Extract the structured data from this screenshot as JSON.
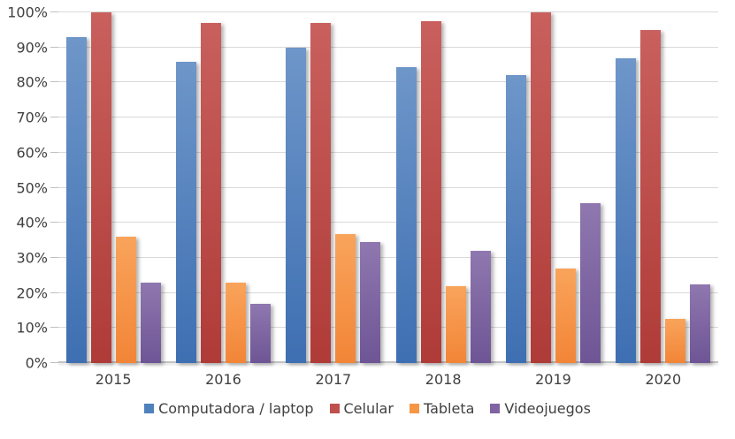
{
  "chart_data": {
    "type": "bar",
    "title": "",
    "xlabel": "",
    "ylabel": "",
    "categories": [
      "2015",
      "2016",
      "2017",
      "2018",
      "2019",
      "2020"
    ],
    "series": [
      {
        "name": "Computadora / laptop",
        "slug": "computadora-laptop",
        "color": "#4F81BD",
        "color_top": "#6E96C9",
        "color_bottom": "#3E6FB2",
        "values": [
          93,
          86,
          90,
          84.5,
          82,
          87
        ]
      },
      {
        "name": "Celular",
        "slug": "celular",
        "color": "#C0504D",
        "color_top": "#C9605D",
        "color_bottom": "#AF3B38",
        "values": [
          100,
          97,
          97,
          97.5,
          100,
          95
        ]
      },
      {
        "name": "Tableta",
        "slug": "tableta",
        "color": "#F79646",
        "color_top": "#F9A45B",
        "color_bottom": "#F28537",
        "values": [
          36,
          23,
          36.7,
          22,
          27,
          12.5
        ]
      },
      {
        "name": "Videojuegos",
        "slug": "videojuegos",
        "color": "#8064A2",
        "color_top": "#8F77AF",
        "color_bottom": "#6E5595",
        "values": [
          23,
          17,
          34.5,
          32,
          45.5,
          22.5
        ]
      }
    ],
    "y_ticks": [
      "0%",
      "10%",
      "20%",
      "30%",
      "40%",
      "50%",
      "60%",
      "70%",
      "80%",
      "90%",
      "100%"
    ],
    "ylim": [
      0,
      100
    ],
    "grid": true,
    "legend_position": "bottom",
    "colors": {
      "gridline": "#D9D9D9",
      "axis_line": "#C3C3C3",
      "tick": "#BFBFBF",
      "text": "#404040",
      "background": "#FFFFFF"
    }
  }
}
